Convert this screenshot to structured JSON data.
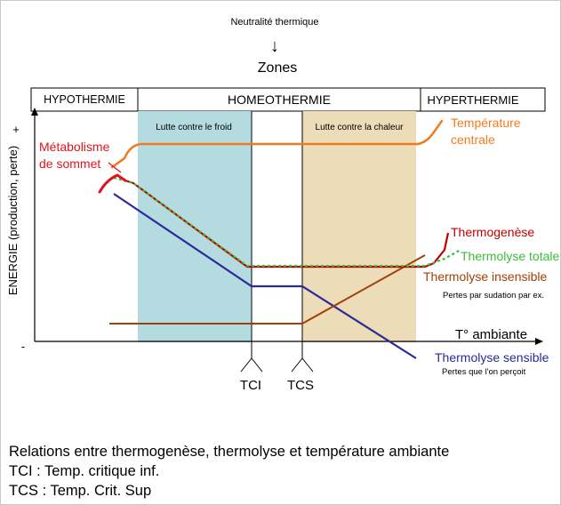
{
  "header": {
    "neutralite": "Neutralité thermique",
    "arrow": "↓",
    "zones": "Zones"
  },
  "zones_bar": {
    "hypo": "HYPOTHERMIE",
    "homeo": "HOMEOTHERMIE",
    "hyper": "HYPERTHERMIE"
  },
  "regions": {
    "froid": "Lutte contre le froid",
    "chaleur": "Lutte contre la chaleur",
    "froid_color": "#b4dce0",
    "chaleur_color": "#ecdcb8"
  },
  "axes": {
    "ylabel": "ENERGIE (production, perte)",
    "plus": "+",
    "minus": "-",
    "xlabel": "T° ambiante",
    "tci": "TCI",
    "tcs": "TCS"
  },
  "curves": {
    "temp_centrale": {
      "label_line1": "Température",
      "label_line2": "centrale",
      "color": "#f07b1e"
    },
    "metabolisme": {
      "label_line1": "Métabolisme",
      "label_line2": "de sommet",
      "color": "#e0141e"
    },
    "thermogenese": {
      "label": "Thermogenèse",
      "color": "#c00000"
    },
    "thermolyse_totale": {
      "label": "Thermolyse totale",
      "color": "#3cbe3c"
    },
    "thermolyse_insensible": {
      "label": "Thermolyse insensible",
      "note": "Pertes par sudation par ex.",
      "color": "#a0400a"
    },
    "thermolyse_sensible": {
      "label": "Thermolyse sensible",
      "note": "Pertes que l'on perçoit",
      "color": "#2a2a9a"
    }
  },
  "caption": {
    "line1": "Relations entre thermogenèse, thermolyse et température ambiante",
    "line2": "TCI : Temp. critique inf.",
    "line3": "TCS : Temp. Crit. Sup"
  }
}
